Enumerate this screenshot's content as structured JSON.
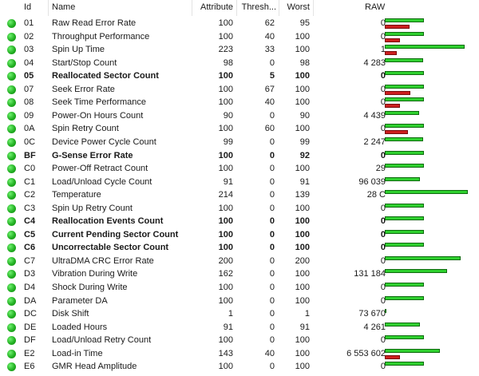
{
  "columns": {
    "id": "Id",
    "name": "Name",
    "attribute": "Attribute",
    "threshold": "Thresh...",
    "worst": "Worst",
    "raw": "RAW"
  },
  "colors": {
    "status_ok": "#22b022",
    "bar_green": "#2fd02f",
    "bar_red": "#cc1f1f"
  },
  "rows": [
    {
      "id": "01",
      "name": "Raw Read Error Rate",
      "attribute": "100",
      "threshold": "62",
      "worst": "95",
      "raw": "0",
      "bold": false,
      "green_level": 0.45,
      "red_level": 0.29
    },
    {
      "id": "02",
      "name": "Throughput Performance",
      "attribute": "100",
      "threshold": "40",
      "worst": "100",
      "raw": "0",
      "bold": false,
      "green_level": 0.45,
      "red_level": 0.18
    },
    {
      "id": "03",
      "name": "Spin Up Time",
      "attribute": "223",
      "threshold": "33",
      "worst": "100",
      "raw": "1",
      "bold": false,
      "green_level": 0.93,
      "red_level": 0.14
    },
    {
      "id": "04",
      "name": "Start/Stop Count",
      "attribute": "98",
      "threshold": "0",
      "worst": "98",
      "raw": "4 283",
      "bold": false,
      "green_level": 0.44,
      "red_level": 0
    },
    {
      "id": "05",
      "name": "Reallocated Sector Count",
      "attribute": "100",
      "threshold": "5",
      "worst": "100",
      "raw": "0",
      "bold": true,
      "green_level": 0.45,
      "red_level": 0
    },
    {
      "id": "07",
      "name": "Seek Error Rate",
      "attribute": "100",
      "threshold": "67",
      "worst": "100",
      "raw": "0",
      "bold": false,
      "green_level": 0.45,
      "red_level": 0.3
    },
    {
      "id": "08",
      "name": "Seek Time Performance",
      "attribute": "100",
      "threshold": "40",
      "worst": "100",
      "raw": "0",
      "bold": false,
      "green_level": 0.45,
      "red_level": 0.18
    },
    {
      "id": "09",
      "name": "Power-On Hours Count",
      "attribute": "90",
      "threshold": "0",
      "worst": "90",
      "raw": "4 439",
      "bold": false,
      "green_level": 0.4,
      "red_level": 0
    },
    {
      "id": "0A",
      "name": "Spin Retry Count",
      "attribute": "100",
      "threshold": "60",
      "worst": "100",
      "raw": "0",
      "bold": false,
      "green_level": 0.45,
      "red_level": 0.27
    },
    {
      "id": "0C",
      "name": "Device Power Cycle Count",
      "attribute": "99",
      "threshold": "0",
      "worst": "99",
      "raw": "2 247",
      "bold": false,
      "green_level": 0.44,
      "red_level": 0
    },
    {
      "id": "BF",
      "name": "G-Sense Error Rate",
      "attribute": "100",
      "threshold": "0",
      "worst": "92",
      "raw": "0",
      "bold": true,
      "green_level": 0.45,
      "red_level": 0
    },
    {
      "id": "C0",
      "name": "Power-Off Retract Count",
      "attribute": "100",
      "threshold": "0",
      "worst": "100",
      "raw": "29",
      "bold": false,
      "green_level": 0.45,
      "red_level": 0
    },
    {
      "id": "C1",
      "name": "Load/Unload Cycle Count",
      "attribute": "91",
      "threshold": "0",
      "worst": "91",
      "raw": "96 039",
      "bold": false,
      "green_level": 0.41,
      "red_level": 0
    },
    {
      "id": "C2",
      "name": "Temperature",
      "attribute": "214",
      "threshold": "0",
      "worst": "139",
      "raw": "28 C",
      "bold": false,
      "green_level": 0.96,
      "red_level": 0
    },
    {
      "id": "C3",
      "name": "Spin Up Retry Count",
      "attribute": "100",
      "threshold": "0",
      "worst": "100",
      "raw": "0",
      "bold": false,
      "green_level": 0.45,
      "red_level": 0
    },
    {
      "id": "C4",
      "name": "Reallocation Events Count",
      "attribute": "100",
      "threshold": "0",
      "worst": "100",
      "raw": "0",
      "bold": true,
      "green_level": 0.45,
      "red_level": 0
    },
    {
      "id": "C5",
      "name": "Current Pending Sector Count",
      "attribute": "100",
      "threshold": "0",
      "worst": "100",
      "raw": "0",
      "bold": true,
      "green_level": 0.45,
      "red_level": 0
    },
    {
      "id": "C6",
      "name": "Uncorrectable Sector Count",
      "attribute": "100",
      "threshold": "0",
      "worst": "100",
      "raw": "0",
      "bold": true,
      "green_level": 0.45,
      "red_level": 0
    },
    {
      "id": "C7",
      "name": "UltraDMA CRC Error Rate",
      "attribute": "200",
      "threshold": "0",
      "worst": "200",
      "raw": "0",
      "bold": false,
      "green_level": 0.88,
      "red_level": 0
    },
    {
      "id": "D3",
      "name": "Vibration During Write",
      "attribute": "162",
      "threshold": "0",
      "worst": "100",
      "raw": "131 184",
      "bold": false,
      "green_level": 0.72,
      "red_level": 0
    },
    {
      "id": "D4",
      "name": "Shock During Write",
      "attribute": "100",
      "threshold": "0",
      "worst": "100",
      "raw": "0",
      "bold": false,
      "green_level": 0.45,
      "red_level": 0
    },
    {
      "id": "DA",
      "name": "Parameter DA",
      "attribute": "100",
      "threshold": "0",
      "worst": "100",
      "raw": "0",
      "bold": false,
      "green_level": 0.45,
      "red_level": 0
    },
    {
      "id": "DC",
      "name": "Disk Shift",
      "attribute": "1",
      "threshold": "0",
      "worst": "1",
      "raw": "73 670",
      "bold": false,
      "green_level": 0.01,
      "red_level": 0
    },
    {
      "id": "DE",
      "name": "Loaded Hours",
      "attribute": "91",
      "threshold": "0",
      "worst": "91",
      "raw": "4 261",
      "bold": false,
      "green_level": 0.41,
      "red_level": 0
    },
    {
      "id": "DF",
      "name": "Load/Unload Retry Count",
      "attribute": "100",
      "threshold": "0",
      "worst": "100",
      "raw": "0",
      "bold": false,
      "green_level": 0.45,
      "red_level": 0
    },
    {
      "id": "E2",
      "name": "Load-in Time",
      "attribute": "143",
      "threshold": "40",
      "worst": "100",
      "raw": "6 553 602",
      "bold": false,
      "green_level": 0.64,
      "red_level": 0.18
    },
    {
      "id": "E6",
      "name": "GMR Head Amplitude",
      "attribute": "100",
      "threshold": "0",
      "worst": "100",
      "raw": "0",
      "bold": false,
      "green_level": 0.45,
      "red_level": 0
    }
  ]
}
